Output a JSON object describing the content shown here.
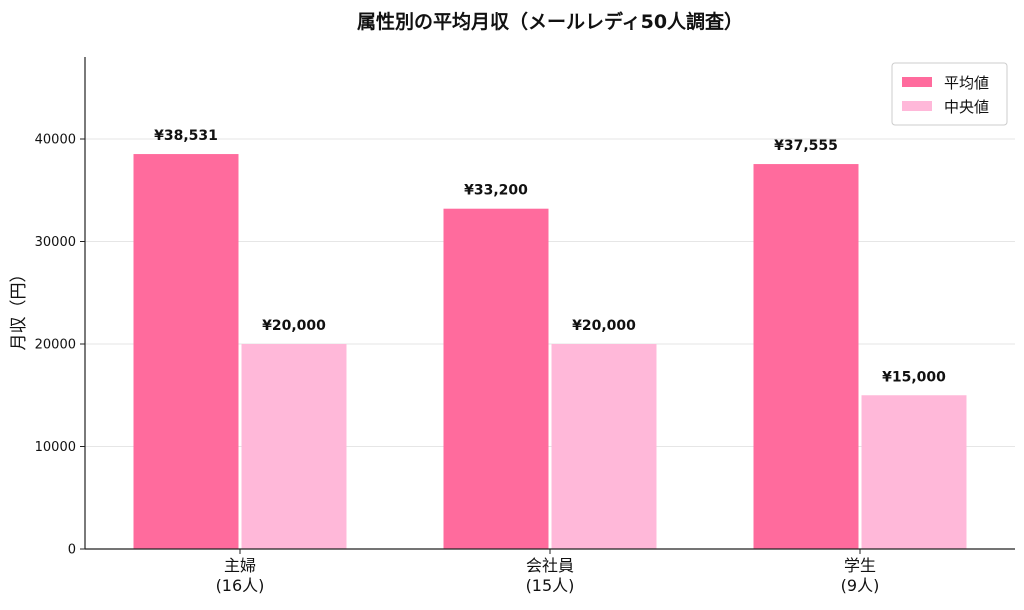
{
  "chart_data": {
    "type": "bar",
    "title": "属性別の平均月収（メールレディ50人調査）",
    "xlabel": "",
    "ylabel": "月収（円）",
    "categories": [
      "主婦\n(16人)",
      "会社員\n(15人)",
      "学生\n(9人)"
    ],
    "series": [
      {
        "name": "平均値",
        "values": [
          38531,
          33200,
          37555
        ],
        "labels": [
          "¥38,531",
          "¥33,200",
          "¥37,555"
        ],
        "color": "#ff6b9d"
      },
      {
        "name": "中央値",
        "values": [
          20000,
          20000,
          15000
        ],
        "labels": [
          "¥20,000",
          "¥20,000",
          "¥15,000"
        ],
        "color": "#ffb8d9"
      }
    ],
    "yticks": [
      0,
      10000,
      20000,
      30000,
      40000
    ],
    "ylim": [
      0,
      48000
    ],
    "grid": true,
    "legend": "top-right"
  }
}
